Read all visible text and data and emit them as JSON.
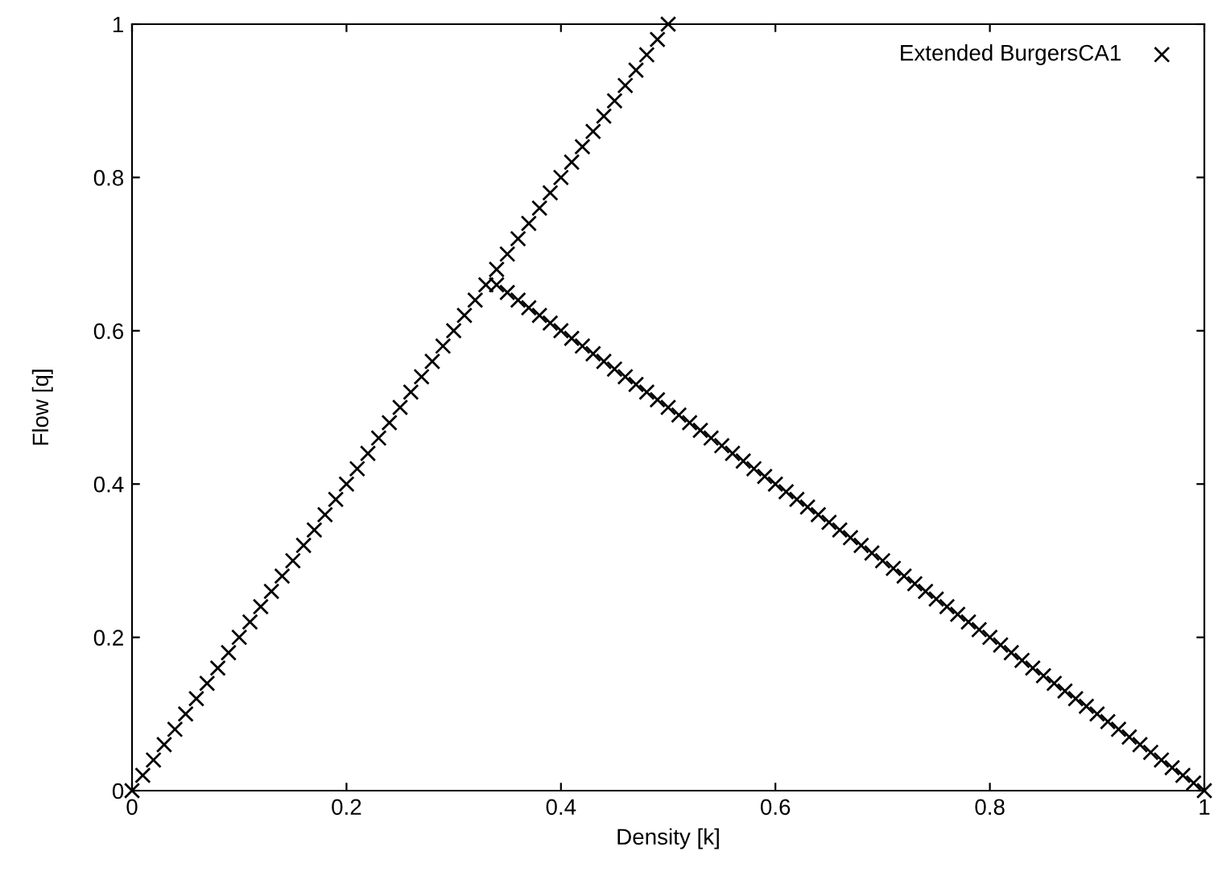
{
  "chart_data": {
    "type": "scatter",
    "xlabel": "Density [k]",
    "ylabel": "Flow [q]",
    "xlim": [
      0,
      1
    ],
    "ylim": [
      0,
      1
    ],
    "xticks": [
      0,
      0.2,
      0.4,
      0.6,
      0.8,
      1
    ],
    "yticks": [
      0,
      0.2,
      0.4,
      0.6,
      0.8,
      1
    ],
    "grid": false,
    "legend": "top right",
    "marker": "cross",
    "series": [
      {
        "name": "Extended BurgersCA1",
        "color": "#000000",
        "x": [
          0,
          0.01,
          0.02,
          0.03,
          0.04,
          0.05,
          0.06,
          0.07,
          0.08,
          0.09,
          0.1,
          0.11,
          0.12,
          0.13,
          0.14,
          0.15,
          0.16,
          0.17,
          0.18,
          0.19,
          0.2,
          0.21,
          0.22,
          0.23,
          0.24,
          0.25,
          0.26,
          0.27,
          0.28,
          0.29,
          0.3,
          0.31,
          0.32,
          0.33,
          0.34,
          0.35,
          0.36,
          0.37,
          0.38,
          0.39,
          0.4,
          0.41,
          0.42,
          0.43,
          0.44,
          0.45,
          0.46,
          0.47,
          0.48,
          0.49,
          0.5,
          0.34,
          0.35,
          0.36,
          0.37,
          0.38,
          0.39,
          0.4,
          0.41,
          0.42,
          0.43,
          0.44,
          0.45,
          0.46,
          0.47,
          0.48,
          0.49,
          0.5,
          0.51,
          0.52,
          0.53,
          0.54,
          0.55,
          0.56,
          0.57,
          0.58,
          0.59,
          0.6,
          0.61,
          0.62,
          0.63,
          0.64,
          0.65,
          0.66,
          0.67,
          0.68,
          0.69,
          0.7,
          0.71,
          0.72,
          0.73,
          0.74,
          0.75,
          0.76,
          0.77,
          0.78,
          0.79,
          0.8,
          0.81,
          0.82,
          0.83,
          0.84,
          0.85,
          0.86,
          0.87,
          0.88,
          0.89,
          0.9,
          0.91,
          0.92,
          0.93,
          0.94,
          0.95,
          0.96,
          0.97,
          0.98,
          0.99,
          1
        ],
        "values": [
          0,
          0.02,
          0.04,
          0.06,
          0.08,
          0.1,
          0.12,
          0.14,
          0.16,
          0.18,
          0.2,
          0.22,
          0.24,
          0.26,
          0.28,
          0.3,
          0.32,
          0.34,
          0.36,
          0.38,
          0.4,
          0.42,
          0.44,
          0.46,
          0.48,
          0.5,
          0.52,
          0.54,
          0.56,
          0.58,
          0.6,
          0.62,
          0.64,
          0.66,
          0.68,
          0.7,
          0.72,
          0.74,
          0.76,
          0.78,
          0.8,
          0.82,
          0.84,
          0.86,
          0.88,
          0.9,
          0.92,
          0.94,
          0.96,
          0.98,
          1,
          0.66,
          0.65,
          0.64,
          0.63,
          0.62,
          0.61,
          0.6,
          0.59,
          0.58,
          0.57,
          0.56,
          0.55,
          0.54,
          0.53,
          0.52,
          0.51,
          0.5,
          0.49,
          0.48,
          0.47,
          0.46,
          0.45,
          0.44,
          0.43,
          0.42,
          0.41,
          0.4,
          0.39,
          0.38,
          0.37,
          0.36,
          0.35,
          0.34,
          0.33,
          0.32,
          0.31,
          0.3,
          0.29,
          0.28,
          0.27,
          0.26,
          0.25,
          0.24,
          0.23,
          0.22,
          0.21,
          0.2,
          0.19,
          0.18,
          0.17,
          0.16,
          0.15,
          0.14,
          0.13,
          0.12,
          0.11,
          0.1,
          0.09,
          0.08,
          0.07,
          0.06,
          0.05,
          0.04,
          0.03,
          0.02,
          0.01,
          0
        ]
      }
    ]
  }
}
